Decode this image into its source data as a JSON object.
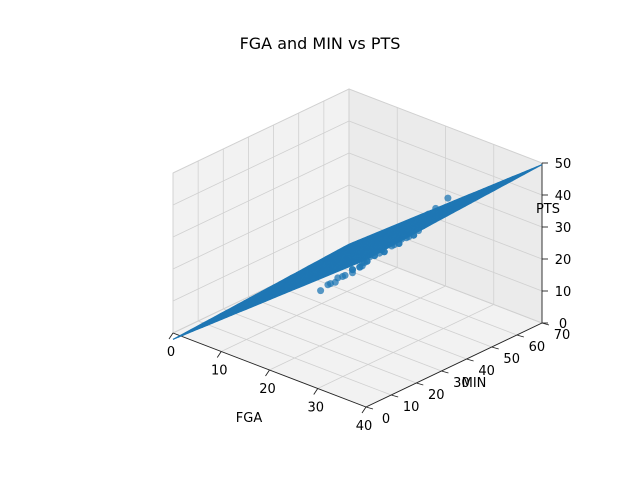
{
  "chart_data": {
    "type": "scatter",
    "subtype": "3d-scatter-with-regression-plane",
    "title": "FGA and MIN vs PTS",
    "xlabel": "FGA",
    "ylabel": "MIN",
    "zlabel": "PTS",
    "xlim": [
      0,
      40
    ],
    "ylim": [
      0,
      70
    ],
    "zlim": [
      0,
      50
    ],
    "x_ticks": [
      "0",
      "10",
      "20",
      "30",
      "40"
    ],
    "y_ticks": [
      "0",
      "10",
      "20",
      "30",
      "40",
      "50",
      "60",
      "70"
    ],
    "z_ticks": [
      "0",
      "10",
      "20",
      "30",
      "40",
      "50"
    ],
    "grid": true,
    "color": "#1f77b4",
    "plane": {
      "intercept": -2.0,
      "coef_fga": 1.2,
      "coef_min": 0.05
    },
    "series": [
      {
        "x": [
          17,
          19,
          21,
          20,
          22,
          23,
          18,
          24,
          25,
          21,
          22,
          26,
          27,
          23,
          20,
          19,
          24,
          25,
          28,
          22,
          21,
          26,
          27,
          30,
          31,
          33,
          29,
          24,
          23,
          20,
          18,
          22,
          25,
          26,
          28,
          16,
          17,
          21,
          24,
          27
        ],
        "y": [
          30,
          32,
          35,
          33,
          34,
          36,
          31,
          38,
          40,
          35,
          36,
          40,
          42,
          38,
          33,
          31,
          37,
          39,
          42,
          35,
          34,
          41,
          43,
          44,
          45,
          46,
          42,
          37,
          36,
          33,
          30,
          35,
          39,
          40,
          42,
          28,
          29,
          34,
          38,
          41
        ],
        "z": [
          14,
          17,
          20,
          18,
          22,
          24,
          16,
          25,
          27,
          21,
          23,
          28,
          30,
          24,
          19,
          17,
          26,
          28,
          31,
          22,
          20,
          29,
          32,
          38,
          40,
          44,
          33,
          26,
          24,
          19,
          15,
          22,
          27,
          28,
          31,
          12,
          14,
          20,
          25,
          30
        ]
      }
    ]
  }
}
